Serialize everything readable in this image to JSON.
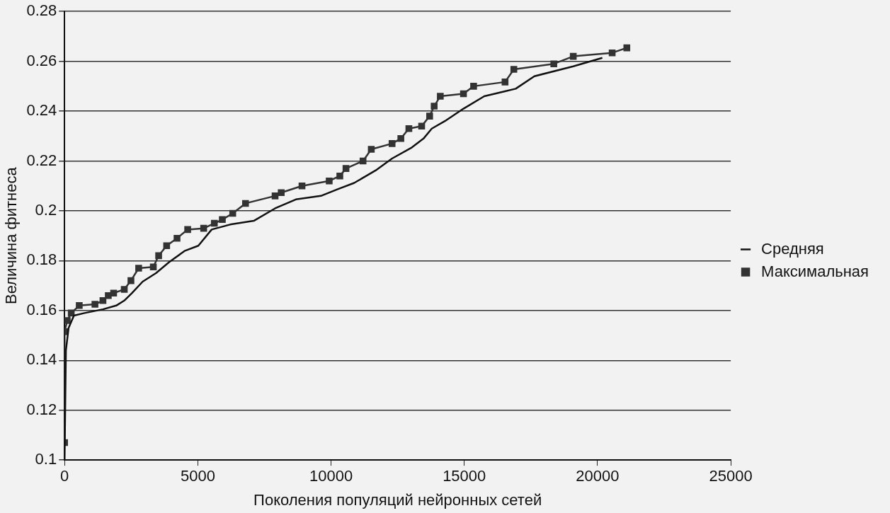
{
  "chart_data": {
    "type": "line",
    "xlabel": "Поколения популяций нейронных сетей",
    "ylabel": "Величина фитнеса",
    "xlim": [
      0,
      25000
    ],
    "xticks": [
      0,
      5000,
      10000,
      15000,
      20000,
      25000
    ],
    "ylim": [
      0.1,
      0.28
    ],
    "yticks": [
      0.1,
      0.12,
      0.14,
      0.16,
      0.18,
      0.2,
      0.22,
      0.24,
      0.26,
      0.28
    ],
    "grid": "y",
    "legend": "right",
    "series": [
      {
        "name": "Средняя",
        "color": "#111111",
        "marker": "none",
        "x": [
          0,
          50,
          150,
          350,
          750,
          1440,
          1940,
          2240,
          2530,
          2930,
          3430,
          3930,
          4520,
          5020,
          5520,
          6210,
          7100,
          7900,
          8680,
          9620,
          10250,
          10870,
          11670,
          12290,
          13000,
          13470,
          13780,
          14270,
          14970,
          15750,
          16530,
          16930,
          17630,
          19090,
          20180
        ],
        "values": [
          0.1,
          0.144,
          0.153,
          0.158,
          0.159,
          0.1605,
          0.162,
          0.164,
          0.167,
          0.1716,
          0.175,
          0.1795,
          0.184,
          0.186,
          0.1925,
          0.1945,
          0.196,
          0.201,
          0.2046,
          0.206,
          0.2087,
          0.2112,
          0.2162,
          0.221,
          0.2252,
          0.229,
          0.233,
          0.236,
          0.241,
          0.246,
          0.248,
          0.249,
          0.254,
          0.258,
          0.2614
        ]
      },
      {
        "name": "Максимальная",
        "color": "#333333",
        "marker": "square",
        "x": [
          0,
          0,
          100,
          250,
          550,
          1140,
          1440,
          1640,
          1840,
          2240,
          2490,
          2780,
          3330,
          3530,
          3830,
          4220,
          4620,
          5220,
          5620,
          5920,
          6310,
          6790,
          7900,
          8130,
          8910,
          9930,
          10330,
          10560,
          11200,
          11510,
          12290,
          12620,
          12920,
          13400,
          13700,
          13870,
          14100,
          14970,
          15350,
          16530,
          16860,
          18360,
          19090,
          20550,
          21100
        ],
        "values": [
          0.107,
          0.1515,
          0.156,
          0.159,
          0.162,
          0.1625,
          0.164,
          0.166,
          0.167,
          0.1685,
          0.172,
          0.177,
          0.1775,
          0.182,
          0.186,
          0.189,
          0.1925,
          0.193,
          0.195,
          0.1965,
          0.199,
          0.203,
          0.206,
          0.2073,
          0.21,
          0.212,
          0.214,
          0.217,
          0.22,
          0.2247,
          0.227,
          0.229,
          0.233,
          0.234,
          0.238,
          0.242,
          0.246,
          0.247,
          0.25,
          0.2517,
          0.2568,
          0.259,
          0.262,
          0.2634,
          0.2654
        ]
      }
    ]
  }
}
